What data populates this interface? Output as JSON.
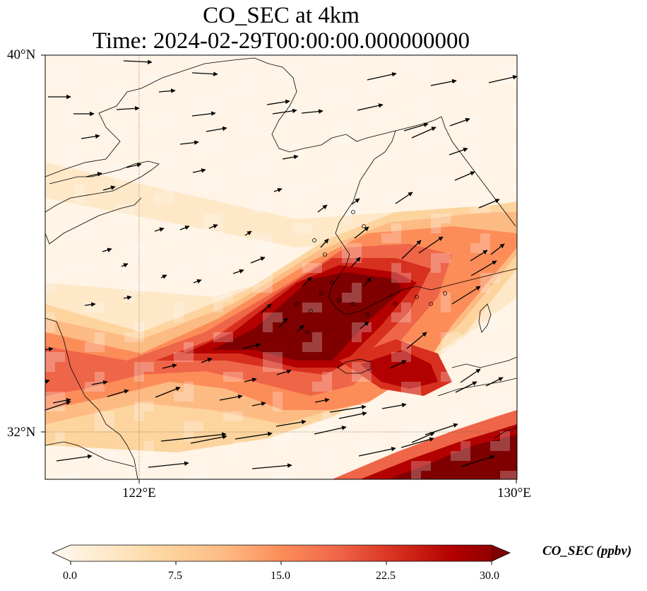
{
  "title": {
    "line1": "CO_SEC at 4km",
    "line2": "Time: 2024-02-29T00:00:00.000000000"
  },
  "axes": {
    "lat_ticks": [
      "40°N",
      "32°N"
    ],
    "lon_ticks": [
      "122°E",
      "130°E"
    ],
    "lon_range": [
      120,
      130
    ],
    "lat_range": [
      31,
      40
    ],
    "gridlines": "dotted at 122°E and 32°N"
  },
  "colorbar": {
    "label": "CO_SEC (ppbv)",
    "ticks": [
      "0.0",
      "7.5",
      "15.0",
      "22.5",
      "30.0"
    ],
    "range": [
      0,
      30
    ],
    "extend": "both",
    "colormap": "OrRd",
    "colors": [
      "#fff7ec",
      "#fee8c8",
      "#fdd49e",
      "#fdbb84",
      "#fc8d59",
      "#ef6548",
      "#d7301f",
      "#b30000",
      "#7f0000"
    ]
  },
  "map_data": {
    "field": "CO_SEC concentration at 4km",
    "features": [
      "Yellow Sea",
      "Korean Peninsula",
      "Jeju Island",
      "Shandong Peninsula",
      "Liaodong Peninsula",
      "Yangtze estuary"
    ],
    "plumes": [
      {
        "name": "main plume",
        "peak_ppbv": 30,
        "center_lon": 125.0,
        "center_lat": 33.9
      },
      {
        "name": "southeast corner",
        "peak_ppbv": 30,
        "center_lon": 129.5,
        "center_lat": 31.3
      }
    ],
    "wind_vectors": "predominantly westerly to west-southwesterly"
  }
}
